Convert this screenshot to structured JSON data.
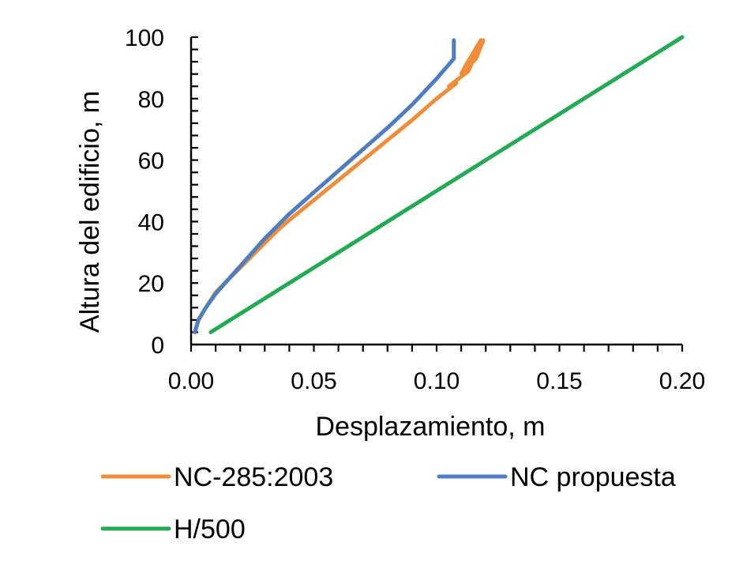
{
  "chart_data": {
    "type": "line",
    "title": "",
    "xlabel": "Desplazamiento, m",
    "ylabel": "Altura del edificio, m",
    "xlim": [
      0,
      0.2
    ],
    "ylim": [
      0,
      100
    ],
    "x_ticks": [
      0,
      0.05,
      0.1,
      0.15,
      0.2
    ],
    "x_tick_labels": [
      "0.00",
      "0.05",
      "0.10",
      "0.15",
      "0.20"
    ],
    "y_ticks": [
      0,
      20,
      40,
      60,
      80,
      100
    ],
    "y_tick_labels": [
      "0",
      "20",
      "40",
      "60",
      "80",
      "100"
    ],
    "x_minor_step": 0.01,
    "y_minor_step": 4,
    "legend_position": "bottom",
    "series": [
      {
        "name": "NC-285:2003",
        "color": "#F08D3A",
        "points": [
          [
            0.0015,
            4
          ],
          [
            0.003,
            8
          ],
          [
            0.006,
            12
          ],
          [
            0.01,
            17
          ],
          [
            0.015,
            21
          ],
          [
            0.02,
            25
          ],
          [
            0.025,
            29
          ],
          [
            0.03,
            33
          ],
          [
            0.035,
            37
          ],
          [
            0.04,
            40.5
          ],
          [
            0.05,
            47
          ],
          [
            0.06,
            53.5
          ],
          [
            0.07,
            60
          ],
          [
            0.08,
            66.5
          ],
          [
            0.09,
            73
          ],
          [
            0.1,
            80
          ],
          [
            0.108,
            85
          ],
          [
            0.105,
            84
          ],
          [
            0.113,
            89
          ],
          [
            0.118,
            99
          ],
          [
            0.112,
            91
          ],
          [
            0.11,
            88
          ],
          [
            0.116,
            93
          ],
          [
            0.119,
            99
          ]
        ]
      },
      {
        "name": "NC propuesta",
        "color": "#4F7EC0",
        "points": [
          [
            0.0015,
            4
          ],
          [
            0.003,
            8
          ],
          [
            0.006,
            12
          ],
          [
            0.01,
            16.5
          ],
          [
            0.015,
            21
          ],
          [
            0.02,
            25.5
          ],
          [
            0.025,
            30
          ],
          [
            0.03,
            34.5
          ],
          [
            0.035,
            38.5
          ],
          [
            0.04,
            42.5
          ],
          [
            0.05,
            49.5
          ],
          [
            0.06,
            56.5
          ],
          [
            0.07,
            63.5
          ],
          [
            0.08,
            70.5
          ],
          [
            0.09,
            78
          ],
          [
            0.1,
            86.5
          ],
          [
            0.107,
            93
          ],
          [
            0.107,
            99
          ]
        ]
      },
      {
        "name": "H/500",
        "color": "#22AA55",
        "points": [
          [
            0.008,
            4
          ],
          [
            0.2,
            100
          ]
        ]
      }
    ]
  }
}
